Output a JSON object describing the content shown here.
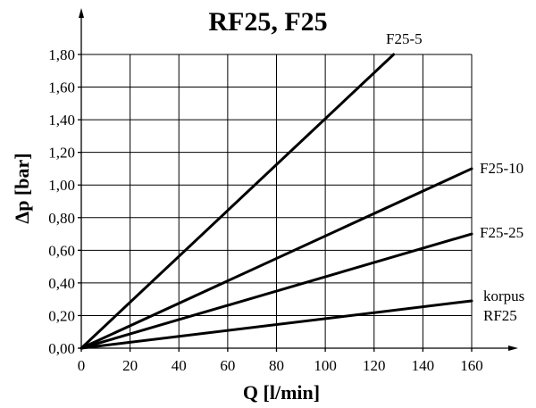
{
  "chart_data": {
    "type": "line",
    "title": "RF25, F25",
    "xlabel": "Q [l/min]",
    "ylabel": "Δp [bar]",
    "xlim": [
      0,
      160
    ],
    "ylim": [
      0,
      1.8
    ],
    "x_ticks": [
      "0",
      "20",
      "40",
      "60",
      "80",
      "100",
      "120",
      "140",
      "160"
    ],
    "y_ticks": [
      "0,00",
      "0,20",
      "0,40",
      "0,60",
      "0,80",
      "1,00",
      "1,20",
      "1,40",
      "1,60",
      "1,80"
    ],
    "grid": true,
    "series": [
      {
        "name": "F25-5",
        "x": [
          0,
          128
        ],
        "y": [
          0,
          1.8
        ]
      },
      {
        "name": "F25-10",
        "x": [
          0,
          160
        ],
        "y": [
          0,
          1.1
        ]
      },
      {
        "name": "F25-25",
        "x": [
          0,
          160
        ],
        "y": [
          0,
          0.7
        ]
      },
      {
        "name": "korpus RF25",
        "name_lines": [
          "korpus",
          "RF25"
        ],
        "x": [
          0,
          160
        ],
        "y": [
          0,
          0.29
        ]
      }
    ]
  }
}
